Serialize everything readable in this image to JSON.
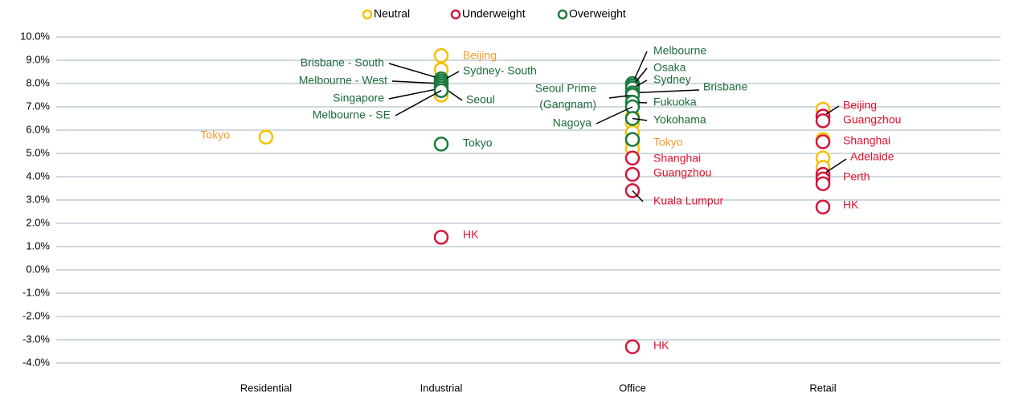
{
  "chart_data": {
    "type": "scatter",
    "categories": [
      "Residential",
      "Industrial",
      "Office",
      "Retail"
    ],
    "ylim": [
      -4,
      10
    ],
    "yticks": [
      {
        "value": -4,
        "label": "-4.0%"
      },
      {
        "value": -3,
        "label": "-3.0%"
      },
      {
        "value": -2,
        "label": "-2.0%"
      },
      {
        "value": -1,
        "label": "-1.0%"
      },
      {
        "value": 0,
        "label": "0.0%"
      },
      {
        "value": 1,
        "label": "1.0%"
      },
      {
        "value": 2,
        "label": "2.0%"
      },
      {
        "value": 3,
        "label": "3.0%"
      },
      {
        "value": 4,
        "label": "4.0%"
      },
      {
        "value": 5,
        "label": "5.0%"
      },
      {
        "value": 6,
        "label": "6.0%"
      },
      {
        "value": 7,
        "label": "7.0%"
      },
      {
        "value": 8,
        "label": "8.0%"
      },
      {
        "value": 9,
        "label": "9.0%"
      },
      {
        "value": 10,
        "label": "10.0%"
      }
    ],
    "grid": true,
    "legend": "top",
    "series": [
      {
        "name": "Neutral",
        "color": "#f5c000",
        "label_color": "#f39a2c",
        "points": [
          {
            "category": "Residential",
            "value": 5.7,
            "label": "Tokyo"
          },
          {
            "category": "Industrial",
            "value": 9.2,
            "label": "Beijing"
          },
          {
            "category": "Industrial",
            "value": 8.6
          },
          {
            "category": "Industrial",
            "value": 7.5
          },
          {
            "category": "Office",
            "value": 6.6
          },
          {
            "category": "Office",
            "value": 6.3
          },
          {
            "category": "Office",
            "value": 5.9
          },
          {
            "category": "Office",
            "value": 5.5,
            "label": "Tokyo"
          },
          {
            "category": "Office",
            "value": 5.2
          },
          {
            "category": "Retail",
            "value": 6.9
          },
          {
            "category": "Retail",
            "value": 5.6
          },
          {
            "category": "Retail",
            "value": 4.8
          },
          {
            "category": "Retail",
            "value": 4.4
          }
        ]
      },
      {
        "name": "Underweight",
        "color": "#d4163c",
        "label_color": "#e3112d",
        "points": [
          {
            "category": "Industrial",
            "value": 1.4,
            "label": "HK"
          },
          {
            "category": "Office",
            "value": 4.8,
            "label": "Shanghai"
          },
          {
            "category": "Office",
            "value": 4.1,
            "label": "Guangzhou"
          },
          {
            "category": "Office",
            "value": 3.4,
            "label": "Kuala Lumpur"
          },
          {
            "category": "Office",
            "value": -3.3,
            "label": "HK"
          },
          {
            "category": "Retail",
            "value": 6.6,
            "label": "Beijing"
          },
          {
            "category": "Retail",
            "value": 6.4,
            "label": "Guangzhou"
          },
          {
            "category": "Retail",
            "value": 5.5,
            "label": "Shanghai"
          },
          {
            "category": "Retail",
            "value": 4.1,
            "label": "Adelaide"
          },
          {
            "category": "Retail",
            "value": 3.9,
            "label": "Perth"
          },
          {
            "category": "Retail",
            "value": 3.7
          },
          {
            "category": "Retail",
            "value": 2.7,
            "label": "HK"
          }
        ]
      },
      {
        "name": "Overweight",
        "color": "#1a7a3f",
        "label_color": "#1d6b3c",
        "points": [
          {
            "category": "Industrial",
            "value": 8.2,
            "label": "Brisbane - South"
          },
          {
            "category": "Industrial",
            "value": 8.1,
            "label": "Sydney- South"
          },
          {
            "category": "Industrial",
            "value": 8.0,
            "label": "Melbourne - West"
          },
          {
            "category": "Industrial",
            "value": 7.9,
            "label": "Seoul"
          },
          {
            "category": "Industrial",
            "value": 7.8,
            "label": "Singapore"
          },
          {
            "category": "Industrial",
            "value": 7.7,
            "label": "Melbourne - SE"
          },
          {
            "category": "Industrial",
            "value": 5.4,
            "label": "Tokyo"
          },
          {
            "category": "Office",
            "value": 8.0,
            "label": "Melbourne"
          },
          {
            "category": "Office",
            "value": 7.9,
            "label": "Osaka"
          },
          {
            "category": "Office",
            "value": 7.8,
            "label": "Sydney"
          },
          {
            "category": "Office",
            "value": 7.6,
            "label": "Brisbane"
          },
          {
            "category": "Office",
            "value": 7.5,
            "label": [
              "Seoul Prime",
              "(Gangnam)"
            ]
          },
          {
            "category": "Office",
            "value": 7.2,
            "label": "Fukuoka"
          },
          {
            "category": "Office",
            "value": 7.0,
            "label": "Nagoya"
          },
          {
            "category": "Office",
            "value": 6.5,
            "label": "Yokohama"
          },
          {
            "category": "Office",
            "value": 5.6
          }
        ]
      }
    ]
  }
}
